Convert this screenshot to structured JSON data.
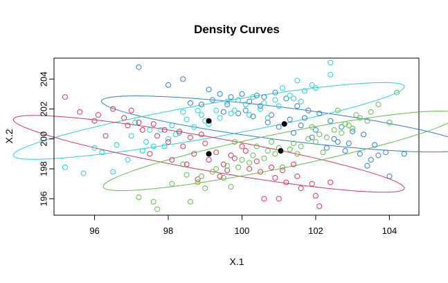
{
  "chart_data": {
    "type": "scatter",
    "title": "Density Curves",
    "xlabel": "X.1",
    "ylabel": "X.2",
    "xlim": [
      94.9,
      104.8
    ],
    "ylim": [
      194.9,
      205.4
    ],
    "x_ticks": [
      96,
      98,
      100,
      102,
      104
    ],
    "y_ticks": [
      196,
      198,
      200,
      202,
      204
    ],
    "grid": false,
    "legend": "none",
    "series": [
      {
        "color": "#2F7FD8",
        "marker": "open-circle",
        "values": [
          [
            97.2,
            204.8
          ],
          [
            98.0,
            203.6
          ],
          [
            98.4,
            204.0
          ],
          [
            99.1,
            203.3
          ],
          [
            99.4,
            203.0
          ],
          [
            99.7,
            202.8
          ],
          [
            100.0,
            203.0
          ],
          [
            100.2,
            202.5
          ],
          [
            100.6,
            202.8
          ],
          [
            100.9,
            203.1
          ],
          [
            101.2,
            202.7
          ],
          [
            101.5,
            202.2
          ],
          [
            101.8,
            201.9
          ],
          [
            102.1,
            201.7
          ],
          [
            102.4,
            201.2
          ],
          [
            102.7,
            200.8
          ],
          [
            103.0,
            200.5
          ],
          [
            103.3,
            200.3
          ],
          [
            103.6,
            199.6
          ],
          [
            103.9,
            199.1
          ],
          [
            99.2,
            202.6
          ],
          [
            99.6,
            202.3
          ],
          [
            100.1,
            201.9
          ],
          [
            100.5,
            202.2
          ],
          [
            100.8,
            201.6
          ],
          [
            101.3,
            201.3
          ],
          [
            101.6,
            200.9
          ],
          [
            102.0,
            200.6
          ],
          [
            102.5,
            200.0
          ],
          [
            102.9,
            199.7
          ],
          [
            103.2,
            199.0
          ],
          [
            103.5,
            198.6
          ],
          [
            104.4,
            199.0
          ],
          [
            104.0,
            197.5
          ],
          [
            98.9,
            202.3
          ],
          [
            99.5,
            201.8
          ],
          [
            100.3,
            201.5
          ],
          [
            100.7,
            201.1
          ],
          [
            101.0,
            200.8
          ],
          [
            101.4,
            200.4
          ],
          [
            101.9,
            200.1
          ],
          [
            102.3,
            199.4
          ],
          [
            102.8,
            199.2
          ],
          [
            103.4,
            198.2
          ],
          [
            100.4,
            202.9
          ],
          [
            99.9,
            201.7
          ],
          [
            98.6,
            202.4
          ],
          [
            101.7,
            201.4
          ],
          [
            102.6,
            199.8
          ],
          [
            103.7,
            198.9
          ]
        ]
      },
      {
        "color": "#1FD5D5",
        "marker": "open-circle",
        "values": [
          [
            95.2,
            198.1
          ],
          [
            95.7,
            197.7
          ],
          [
            96.2,
            199.1
          ],
          [
            96.6,
            199.6
          ],
          [
            97.0,
            200.2
          ],
          [
            97.4,
            199.8
          ],
          [
            97.8,
            200.6
          ],
          [
            98.1,
            200.9
          ],
          [
            98.5,
            201.3
          ],
          [
            98.9,
            201.6
          ],
          [
            99.3,
            201.9
          ],
          [
            99.7,
            201.7
          ],
          [
            100.1,
            202.3
          ],
          [
            100.5,
            202.0
          ],
          [
            100.9,
            202.6
          ],
          [
            101.3,
            202.9
          ],
          [
            101.7,
            203.2
          ],
          [
            102.0,
            203.4
          ],
          [
            102.4,
            204.3
          ],
          [
            102.4,
            205.1
          ],
          [
            96.5,
            197.8
          ],
          [
            96.9,
            198.6
          ],
          [
            97.3,
            199.2
          ],
          [
            97.6,
            199.5
          ],
          [
            98.0,
            200.0
          ],
          [
            98.3,
            200.4
          ],
          [
            98.7,
            200.8
          ],
          [
            99.0,
            201.2
          ],
          [
            99.4,
            201.4
          ],
          [
            99.8,
            201.9
          ],
          [
            100.2,
            201.6
          ],
          [
            100.6,
            202.4
          ],
          [
            101.0,
            202.2
          ],
          [
            101.4,
            202.7
          ],
          [
            101.9,
            203.6
          ],
          [
            97.1,
            201.1
          ],
          [
            97.5,
            200.6
          ],
          [
            98.2,
            200.3
          ],
          [
            98.8,
            201.9
          ],
          [
            99.6,
            202.5
          ],
          [
            100.3,
            202.8
          ],
          [
            101.1,
            203.4
          ],
          [
            101.6,
            202.5
          ],
          [
            96.0,
            199.4
          ],
          [
            97.9,
            199.5
          ],
          [
            99.1,
            201.0
          ],
          [
            100.7,
            201.4
          ],
          [
            101.5,
            203.9
          ],
          [
            98.4,
            201.8
          ],
          [
            99.9,
            202.6
          ]
        ]
      },
      {
        "color": "#D9365C",
        "marker": "open-circle",
        "values": [
          [
            95.2,
            202.8
          ],
          [
            95.6,
            201.8
          ],
          [
            96.1,
            201.6
          ],
          [
            96.5,
            202.0
          ],
          [
            96.9,
            200.9
          ],
          [
            97.3,
            200.6
          ],
          [
            97.7,
            200.2
          ],
          [
            98.0,
            199.8
          ],
          [
            98.4,
            199.5
          ],
          [
            98.7,
            199.0
          ],
          [
            99.1,
            198.6
          ],
          [
            99.5,
            198.3
          ],
          [
            99.8,
            198.7
          ],
          [
            100.2,
            198.0
          ],
          [
            100.5,
            197.8
          ],
          [
            100.9,
            197.4
          ],
          [
            101.2,
            197.1
          ],
          [
            101.6,
            196.7
          ],
          [
            102.0,
            196.2
          ],
          [
            102.4,
            197.1
          ],
          [
            96.3,
            200.2
          ],
          [
            96.8,
            201.4
          ],
          [
            97.2,
            201.1
          ],
          [
            97.6,
            201.0
          ],
          [
            97.9,
            200.6
          ],
          [
            98.3,
            200.5
          ],
          [
            98.6,
            200.1
          ],
          [
            99.0,
            199.7
          ],
          [
            99.3,
            199.1
          ],
          [
            99.7,
            198.9
          ],
          [
            100.1,
            199.2
          ],
          [
            100.4,
            198.5
          ],
          [
            100.8,
            198.1
          ],
          [
            101.1,
            197.9
          ],
          [
            101.5,
            197.5
          ],
          [
            101.9,
            197.0
          ],
          [
            98.1,
            198.6
          ],
          [
            98.8,
            197.3
          ],
          [
            99.6,
            197.9
          ],
          [
            100.6,
            196.0
          ],
          [
            101.0,
            196.0
          ],
          [
            102.1,
            195.5
          ],
          [
            97.5,
            199.0
          ],
          [
            98.9,
            200.3
          ],
          [
            100.0,
            199.5
          ],
          [
            97.0,
            201.9
          ],
          [
            99.4,
            197.5
          ],
          [
            101.4,
            198.3
          ],
          [
            96.0,
            201.2
          ],
          [
            98.5,
            198.3
          ]
        ]
      },
      {
        "color": "#5DC04A",
        "marker": "open-circle",
        "values": [
          [
            97.2,
            196.1
          ],
          [
            97.7,
            195.3
          ],
          [
            98.1,
            197.0
          ],
          [
            98.5,
            197.6
          ],
          [
            98.9,
            197.5
          ],
          [
            99.3,
            198.0
          ],
          [
            99.6,
            198.2
          ],
          [
            100.0,
            198.6
          ],
          [
            100.3,
            198.9
          ],
          [
            100.7,
            199.2
          ],
          [
            101.0,
            199.4
          ],
          [
            101.4,
            199.7
          ],
          [
            101.8,
            200.0
          ],
          [
            102.1,
            200.3
          ],
          [
            102.5,
            200.6
          ],
          [
            102.9,
            200.9
          ],
          [
            103.2,
            201.4
          ],
          [
            103.5,
            201.8
          ],
          [
            104.0,
            201.1
          ],
          [
            104.2,
            203.1
          ],
          [
            98.4,
            198.3
          ],
          [
            98.8,
            197.1
          ],
          [
            99.2,
            197.8
          ],
          [
            99.5,
            197.4
          ],
          [
            99.9,
            198.1
          ],
          [
            100.2,
            198.4
          ],
          [
            100.6,
            198.7
          ],
          [
            100.9,
            199.0
          ],
          [
            101.3,
            199.3
          ],
          [
            101.6,
            199.5
          ],
          [
            102.0,
            199.8
          ],
          [
            102.3,
            200.1
          ],
          [
            102.7,
            200.4
          ],
          [
            103.0,
            200.7
          ],
          [
            103.4,
            201.2
          ],
          [
            97.6,
            195.8
          ],
          [
            99.0,
            196.7
          ],
          [
            99.7,
            196.8
          ],
          [
            101.5,
            199.0
          ],
          [
            102.2,
            199.1
          ],
          [
            103.1,
            201.6
          ],
          [
            102.6,
            201.9
          ],
          [
            100.4,
            199.5
          ],
          [
            101.1,
            198.1
          ],
          [
            98.6,
            195.8
          ],
          [
            99.8,
            199.8
          ],
          [
            102.8,
            201.0
          ],
          [
            103.7,
            202.3
          ],
          [
            100.8,
            199.8
          ],
          [
            101.9,
            200.8
          ]
        ]
      }
    ],
    "ellipses": [
      {
        "color": "#2F7FD8",
        "center": [
          101.15,
          201.0
        ],
        "axis_dir": [
          1,
          -0.32
        ],
        "semi_major": 5.2,
        "semi_minor": 1.05
      },
      {
        "color": "#1FD5D5",
        "center": [
          99.1,
          201.2
        ],
        "axis_dir": [
          1,
          0.45
        ],
        "semi_major": 5.8,
        "semi_minor": 1.05
      },
      {
        "color": "#D9365C",
        "center": [
          99.1,
          199.0
        ],
        "axis_dir": [
          1,
          -0.45
        ],
        "semi_major": 5.8,
        "semi_minor": 1.05
      },
      {
        "color": "#5DC04A",
        "center": [
          101.05,
          199.2
        ],
        "axis_dir": [
          1,
          0.52
        ],
        "semi_major": 5.4,
        "semi_minor": 1.05
      }
    ],
    "centers": [
      [
        101.15,
        201.0
      ],
      [
        99.1,
        201.2
      ],
      [
        99.1,
        199.0
      ],
      [
        101.05,
        199.2
      ]
    ]
  }
}
